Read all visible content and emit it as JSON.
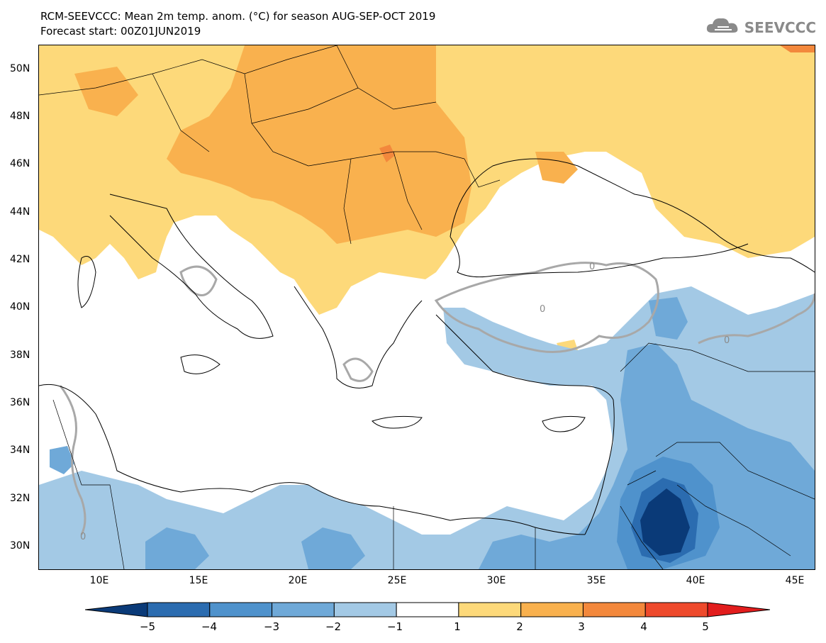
{
  "header": {
    "title": "RCM-SEEVCCC: Mean 2m temp. anom. (°C) for season AUG-SEP-OCT 2019",
    "subtitle": "Forecast start: 00Z01JUN2019",
    "logo_text": "SEEVCCC",
    "logo_icon": "cloud-icon"
  },
  "map": {
    "projection": "lat-lon",
    "lon_range": [
      7,
      46
    ],
    "lat_range": [
      29,
      51
    ],
    "lat_ticks": [
      "50N",
      "48N",
      "46N",
      "44N",
      "42N",
      "40N",
      "38N",
      "36N",
      "34N",
      "32N",
      "30N"
    ],
    "lon_ticks": [
      "10E",
      "15E",
      "20E",
      "25E",
      "30E",
      "35E",
      "40E",
      "45E"
    ],
    "contour_labels": [
      "0",
      "0",
      "0",
      "0"
    ]
  },
  "colorbar": {
    "labels": [
      "−5",
      "−4",
      "−3",
      "−2",
      "−1",
      "1",
      "2",
      "3",
      "4",
      "5"
    ],
    "colors": [
      "#0a3a78",
      "#2b6cb0",
      "#4f92cc",
      "#6fa9d8",
      "#a3c9e5",
      "#ffffff",
      "#fdd97a",
      "#f9b14e",
      "#f3883c",
      "#ee4a2c",
      "#e21d1d"
    ]
  }
}
